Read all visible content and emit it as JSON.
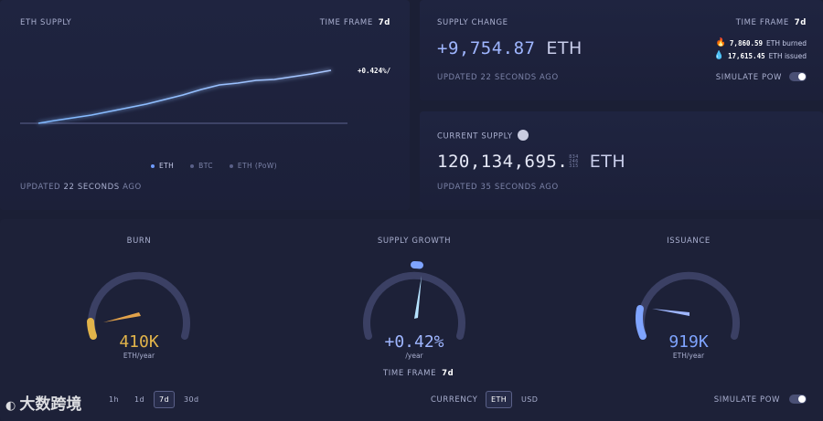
{
  "eth_supply": {
    "title": "ETH SUPPLY",
    "time_frame_label": "TIME FRAME",
    "time_frame_value": "7d",
    "growth_label": "+0.424%/",
    "legend": [
      {
        "label": "ETH",
        "color": "#6f9bff"
      },
      {
        "label": "BTC",
        "color": "#5a6088"
      },
      {
        "label": "ETH (PoW)",
        "color": "#5a6088"
      }
    ],
    "updated_prefix": "UPDATED",
    "updated_value": "22 SECONDS",
    "updated_suffix": "AGO"
  },
  "supply_change": {
    "title": "SUPPLY CHANGE",
    "time_frame_label": "TIME FRAME",
    "time_frame_value": "7d",
    "value": "+9,754.87",
    "unit": "ETH",
    "burned_value": "7,860.59",
    "burned_label": "ETH burned",
    "issued_value": "17,615.45",
    "issued_label": "ETH issued",
    "updated_text": "UPDATED 22 SECONDS AGO",
    "simulate_label": "SIMULATE PoW"
  },
  "current_supply": {
    "title": "CURRENT SUPPLY",
    "value": "120,134,695.",
    "decimals": [
      "834",
      "246",
      "315"
    ],
    "unit": "ETH",
    "updated_text": "UPDATED 35 SECONDS AGO"
  },
  "gauges": {
    "burn": {
      "title": "BURN",
      "value": "410K",
      "unit": "ETH/year",
      "color": "#e2b44a"
    },
    "growth": {
      "title": "SUPPLY GROWTH",
      "value": "+0.42%",
      "unit": "/year",
      "color": "#7fa4ff",
      "time_frame_label": "TIME FRAME",
      "time_frame_value": "7d"
    },
    "issuance": {
      "title": "ISSUANCE",
      "value": "919K",
      "unit": "ETH/year",
      "color": "#7fa4ff"
    }
  },
  "controls": {
    "time_frames": [
      "1h",
      "1d",
      "7d",
      "30d"
    ],
    "active_time_frame": "7d",
    "currency_label": "CURRENCY",
    "currencies": [
      "ETH",
      "USD"
    ],
    "active_currency": "ETH",
    "simulate_label": "SIMULATE PoW"
  },
  "watermark": "大数跨境"
}
